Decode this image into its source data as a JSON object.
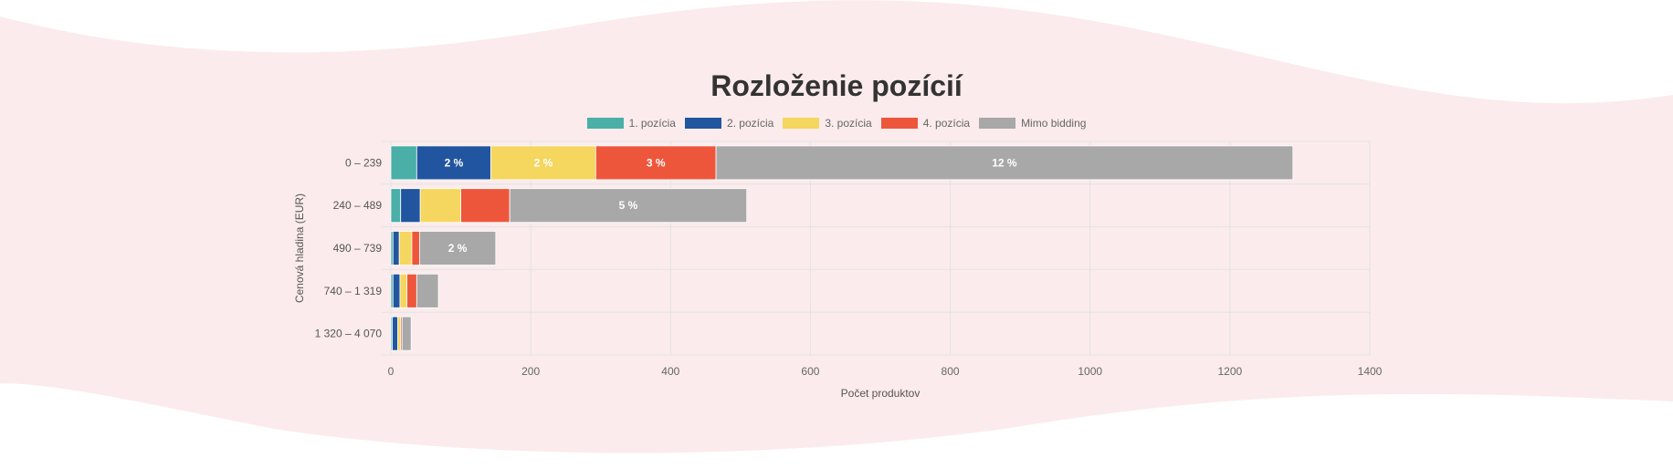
{
  "chart_data": {
    "type": "bar",
    "orientation": "horizontal",
    "stacked": true,
    "title": "Rozloženie pozícií",
    "xlabel": "Počet produktov",
    "ylabel": "Cenová hladina (EUR)",
    "xlim": [
      0,
      1400
    ],
    "xticks": [
      "0",
      "200",
      "400",
      "600",
      "800",
      "1000",
      "1200",
      "1400"
    ],
    "grid": true,
    "legend_position": "top",
    "categories": [
      "0 – 239",
      "240 – 489",
      "490 – 739",
      "740 – 1 319",
      "1 320 – 4 070"
    ],
    "series": [
      {
        "name": "1. pozícia",
        "color": "#4aafa6",
        "values": [
          37,
          14,
          3,
          3,
          2
        ],
        "labels": [
          "",
          "",
          "",
          "",
          ""
        ]
      },
      {
        "name": "2. pozícia",
        "color": "#22559f",
        "values": [
          106,
          28,
          9,
          10,
          8
        ],
        "labels": [
          "2 %",
          "",
          "",
          "",
          ""
        ]
      },
      {
        "name": "3. pozícia",
        "color": "#f5d65e",
        "values": [
          150,
          58,
          18,
          10,
          4
        ],
        "labels": [
          "2 %",
          "",
          "",
          "",
          ""
        ]
      },
      {
        "name": "4. pozícia",
        "color": "#ee563b",
        "values": [
          172,
          70,
          11,
          14,
          2
        ],
        "labels": [
          "3 %",
          "",
          "",
          "",
          ""
        ]
      },
      {
        "name": "Mimo bidding",
        "color": "#a8a8a8",
        "values": [
          825,
          339,
          109,
          31,
          13
        ],
        "labels": [
          "12 %",
          "5 %",
          "2 %",
          "",
          ""
        ]
      }
    ]
  },
  "background_color": "#fbebec"
}
